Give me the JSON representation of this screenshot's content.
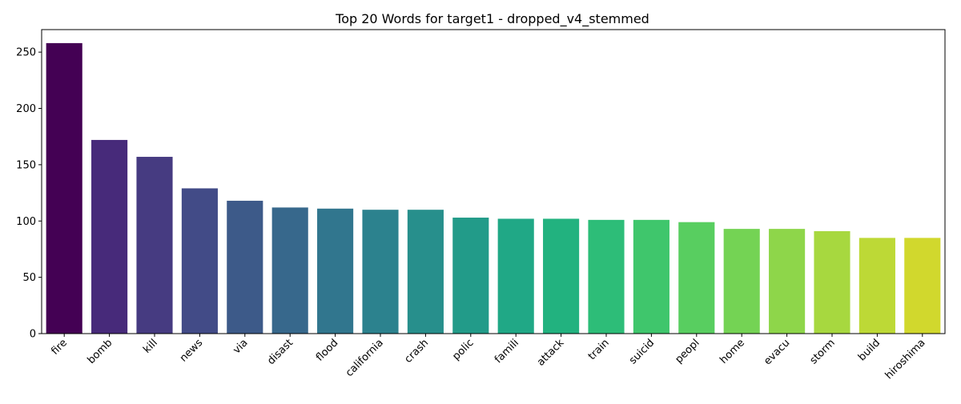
{
  "chart_data": {
    "type": "bar",
    "title": "Top 20 Words for target1 - dropped_v4_stemmed",
    "xlabel": "",
    "ylabel": "",
    "categories": [
      "fire",
      "bomb",
      "kill",
      "news",
      "via",
      "disast",
      "flood",
      "california",
      "crash",
      "polic",
      "famili",
      "attack",
      "train",
      "suicid",
      "peopl",
      "home",
      "evacu",
      "storm",
      "build",
      "hiroshima"
    ],
    "values": [
      258,
      172,
      157,
      129,
      118,
      112,
      111,
      110,
      110,
      103,
      102,
      102,
      101,
      101,
      99,
      93,
      93,
      91,
      85,
      85
    ],
    "ylim": [
      0,
      270
    ],
    "yticks": [
      0,
      50,
      100,
      150,
      200,
      250
    ],
    "colors": [
      "#440154",
      "#472a7a",
      "#463b81",
      "#424b87",
      "#3d5a89",
      "#37688c",
      "#31768e",
      "#2c828e",
      "#278f8c",
      "#229b89",
      "#20a886",
      "#22b27f",
      "#2dbd78",
      "#3fc66c",
      "#58ce60",
      "#74d354",
      "#8ed64a",
      "#a7d83f",
      "#bdd936",
      "#d1d82d"
    ],
    "grid": false,
    "legend": "none"
  }
}
